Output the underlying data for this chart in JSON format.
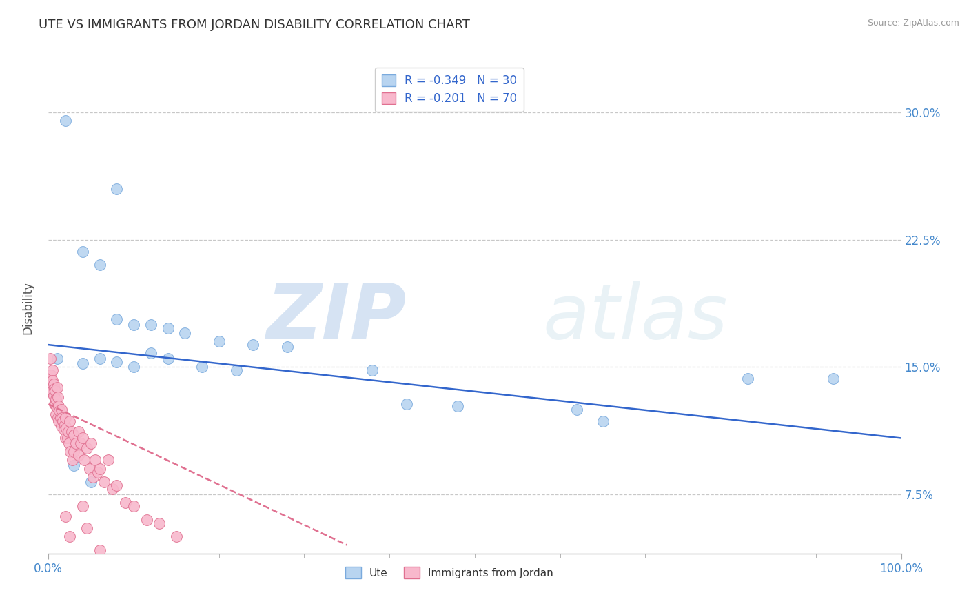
{
  "title": "UTE VS IMMIGRANTS FROM JORDAN DISABILITY CORRELATION CHART",
  "source": "Source: ZipAtlas.com",
  "ylabel": "Disability",
  "xlim": [
    0.0,
    1.0
  ],
  "ylim": [
    0.04,
    0.33
  ],
  "xtick_positions": [
    0.0,
    1.0
  ],
  "xticklabels": [
    "0.0%",
    "100.0%"
  ],
  "ytick_positions": [
    0.075,
    0.15,
    0.225,
    0.3
  ],
  "yticklabels": [
    "7.5%",
    "15.0%",
    "22.5%",
    "30.0%"
  ],
  "grid_color": "#c8c8c8",
  "background_color": "#ffffff",
  "watermark_zip": "ZIP",
  "watermark_atlas": "atlas",
  "watermark_color": "#d0dde8",
  "series": [
    {
      "name": "Ute",
      "color": "#b8d4f0",
      "edge_color": "#7aaadd",
      "R": -0.349,
      "N": 30,
      "line_color": "#3366cc",
      "line_style": "solid",
      "trend_x0": 0.0,
      "trend_y0": 0.163,
      "trend_x1": 1.0,
      "trend_y1": 0.108,
      "x": [
        0.02,
        0.08,
        0.04,
        0.06,
        0.08,
        0.1,
        0.12,
        0.14,
        0.16,
        0.2,
        0.24,
        0.28,
        0.12,
        0.14,
        0.06,
        0.08,
        0.04,
        0.1,
        0.18,
        0.22,
        0.38,
        0.42,
        0.48,
        0.62,
        0.65,
        0.82,
        0.92,
        0.01,
        0.03,
        0.05
      ],
      "y": [
        0.295,
        0.255,
        0.218,
        0.21,
        0.178,
        0.175,
        0.175,
        0.173,
        0.17,
        0.165,
        0.163,
        0.162,
        0.158,
        0.155,
        0.155,
        0.153,
        0.152,
        0.15,
        0.15,
        0.148,
        0.148,
        0.128,
        0.127,
        0.125,
        0.118,
        0.143,
        0.143,
        0.155,
        0.092,
        0.082
      ]
    },
    {
      "name": "Immigrants from Jordan",
      "color": "#f8b8cc",
      "edge_color": "#e07090",
      "R": -0.201,
      "N": 70,
      "line_color": "#e07090",
      "line_style": "dashed",
      "trend_x0": 0.0,
      "trend_y0": 0.128,
      "trend_x1": 0.35,
      "trend_y1": 0.045,
      "x": [
        0.002,
        0.002,
        0.003,
        0.003,
        0.004,
        0.004,
        0.005,
        0.005,
        0.005,
        0.006,
        0.006,
        0.007,
        0.007,
        0.008,
        0.008,
        0.009,
        0.009,
        0.01,
        0.01,
        0.011,
        0.011,
        0.012,
        0.012,
        0.013,
        0.014,
        0.015,
        0.015,
        0.016,
        0.017,
        0.018,
        0.019,
        0.02,
        0.02,
        0.021,
        0.022,
        0.023,
        0.024,
        0.025,
        0.026,
        0.027,
        0.028,
        0.03,
        0.03,
        0.032,
        0.035,
        0.035,
        0.038,
        0.04,
        0.042,
        0.045,
        0.048,
        0.05,
        0.052,
        0.055,
        0.058,
        0.06,
        0.065,
        0.07,
        0.075,
        0.08,
        0.09,
        0.1,
        0.115,
        0.13,
        0.15,
        0.04,
        0.045,
        0.02,
        0.025,
        0.06
      ],
      "y": [
        0.155,
        0.145,
        0.145,
        0.14,
        0.14,
        0.135,
        0.148,
        0.142,
        0.136,
        0.14,
        0.133,
        0.137,
        0.128,
        0.136,
        0.128,
        0.131,
        0.122,
        0.138,
        0.126,
        0.132,
        0.12,
        0.127,
        0.118,
        0.124,
        0.12,
        0.125,
        0.115,
        0.12,
        0.118,
        0.113,
        0.116,
        0.12,
        0.108,
        0.114,
        0.108,
        0.112,
        0.105,
        0.118,
        0.1,
        0.112,
        0.095,
        0.11,
        0.1,
        0.105,
        0.112,
        0.098,
        0.105,
        0.108,
        0.095,
        0.102,
        0.09,
        0.105,
        0.085,
        0.095,
        0.088,
        0.09,
        0.082,
        0.095,
        0.078,
        0.08,
        0.07,
        0.068,
        0.06,
        0.058,
        0.05,
        0.068,
        0.055,
        0.062,
        0.05,
        0.042
      ]
    }
  ],
  "legend_R_color": "#cc0000",
  "legend_N_color": "#000000",
  "legend_label_color": "#3366cc",
  "title_fontsize": 13,
  "tick_color": "#4488cc",
  "title_color": "#333333"
}
